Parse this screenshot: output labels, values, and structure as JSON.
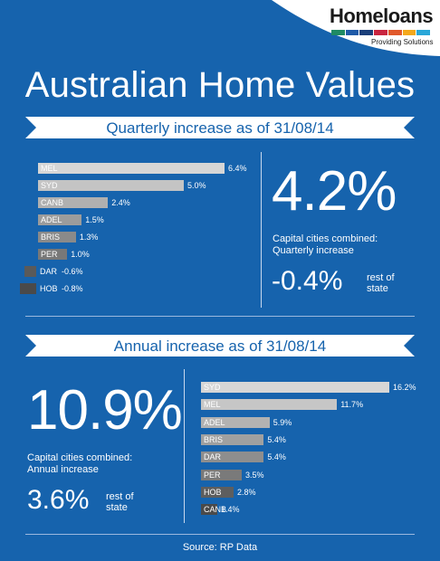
{
  "brand": {
    "name": "Homeloans",
    "tagline": "Providing Solutions",
    "stripe_colors": [
      "#1f8a63",
      "#1e5aa8",
      "#1b3f7a",
      "#c9243f",
      "#e1592b",
      "#f4a81c",
      "#2aa7d8"
    ]
  },
  "title": "Australian Home Values",
  "quarterly": {
    "heading": "Quarterly increase as of 31/08/14",
    "headline_value": "4.2%",
    "headline_caption_line1": "Capital cities combined:",
    "headline_caption_line2": "Quarterly increase",
    "rest_value": "-0.4%",
    "rest_caption_line1": "rest of",
    "rest_caption_line2": "state"
  },
  "annual": {
    "heading": "Annual increase as of 31/08/14",
    "headline_value": "10.9%",
    "headline_caption_line1": "Capital cities combined:",
    "headline_caption_line2": "Annual increase",
    "rest_value": "3.6%",
    "rest_caption_line1": "rest of",
    "rest_caption_line2": "state"
  },
  "source": "Source: RP Data",
  "colors": {
    "background": "#1663ad",
    "ribbon": "#ffffff",
    "bar_light": "#d6d6d6",
    "bar_mid": "#a7a7a7",
    "bar_dark": "#737373",
    "bar_darkest": "#4a4a4a"
  },
  "chart_data": [
    {
      "type": "bar",
      "orientation": "horizontal",
      "title": "Quarterly increase as of 31/08/14",
      "categories": [
        "MEL",
        "SYD",
        "CANB",
        "ADEL",
        "BRIS",
        "PER",
        "DAR",
        "HOB"
      ],
      "values": [
        6.4,
        5.0,
        2.4,
        1.5,
        1.3,
        1.0,
        -0.6,
        -0.8
      ],
      "value_labels": [
        "6.4%",
        "5.0%",
        "2.4%",
        "1.5%",
        "1.3%",
        "1.0%",
        "-0.6%",
        "-0.8%"
      ],
      "bar_colors": [
        "#d6d6d6",
        "#c4c4c4",
        "#b0b0b0",
        "#9c9c9c",
        "#8a8a8a",
        "#787878",
        "#5a5a5a",
        "#4a4a4a"
      ],
      "xlim": [
        -0.8,
        6.4
      ],
      "grid": false
    },
    {
      "type": "bar",
      "orientation": "horizontal",
      "title": "Annual increase as of 31/08/14",
      "categories": [
        "SYD",
        "MEL",
        "ADEL",
        "BRIS",
        "DAR",
        "PER",
        "HOB",
        "CANB"
      ],
      "values": [
        16.2,
        11.7,
        5.9,
        5.4,
        5.4,
        3.5,
        2.8,
        1.4
      ],
      "value_labels": [
        "16.2%",
        "11.7%",
        "5.9%",
        "5.4%",
        "5.4%",
        "3.5%",
        "2.8%",
        "1.4%"
      ],
      "bar_colors": [
        "#d6d6d6",
        "#c6c6c6",
        "#b2b2b2",
        "#a0a0a0",
        "#8e8e8e",
        "#7a7a7a",
        "#5e5e5e",
        "#4a4a4a"
      ],
      "xlim": [
        0,
        16.2
      ],
      "grid": false
    }
  ]
}
